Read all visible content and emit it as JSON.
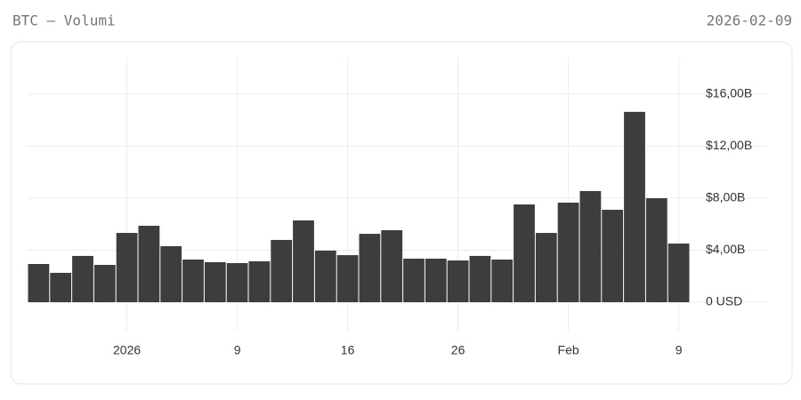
{
  "header": {
    "title": "BTC — Volumi",
    "date": "2026-02-09"
  },
  "chart_data": {
    "type": "bar",
    "categories": [
      null,
      null,
      null,
      null,
      "2026",
      null,
      null,
      null,
      null,
      "9",
      null,
      null,
      null,
      null,
      "16",
      null,
      null,
      null,
      null,
      "26",
      null,
      null,
      null,
      null,
      "Feb",
      null,
      null,
      null,
      null,
      "9"
    ],
    "values": [
      2.94,
      2.26,
      3.56,
      2.87,
      5.33,
      5.88,
      4.31,
      3.28,
      3.08,
      3.01,
      3.15,
      4.79,
      6.29,
      3.97,
      3.62,
      5.26,
      5.54,
      3.35,
      3.35,
      3.21,
      3.56,
      3.28,
      7.52,
      5.33,
      7.66,
      8.55,
      7.11,
      14.64,
      8.0,
      4.51
    ],
    "color": "#3d3d3d",
    "ylim": [
      0,
      18.8
    ],
    "yticks": [
      {
        "value": 0,
        "label": "0 USD"
      },
      {
        "value": 4,
        "label": "$4,00B"
      },
      {
        "value": 8,
        "label": "$8,00B"
      },
      {
        "value": 12,
        "label": "$12,00B"
      },
      {
        "value": 16,
        "label": "$16,00B"
      }
    ],
    "grid": true
  }
}
